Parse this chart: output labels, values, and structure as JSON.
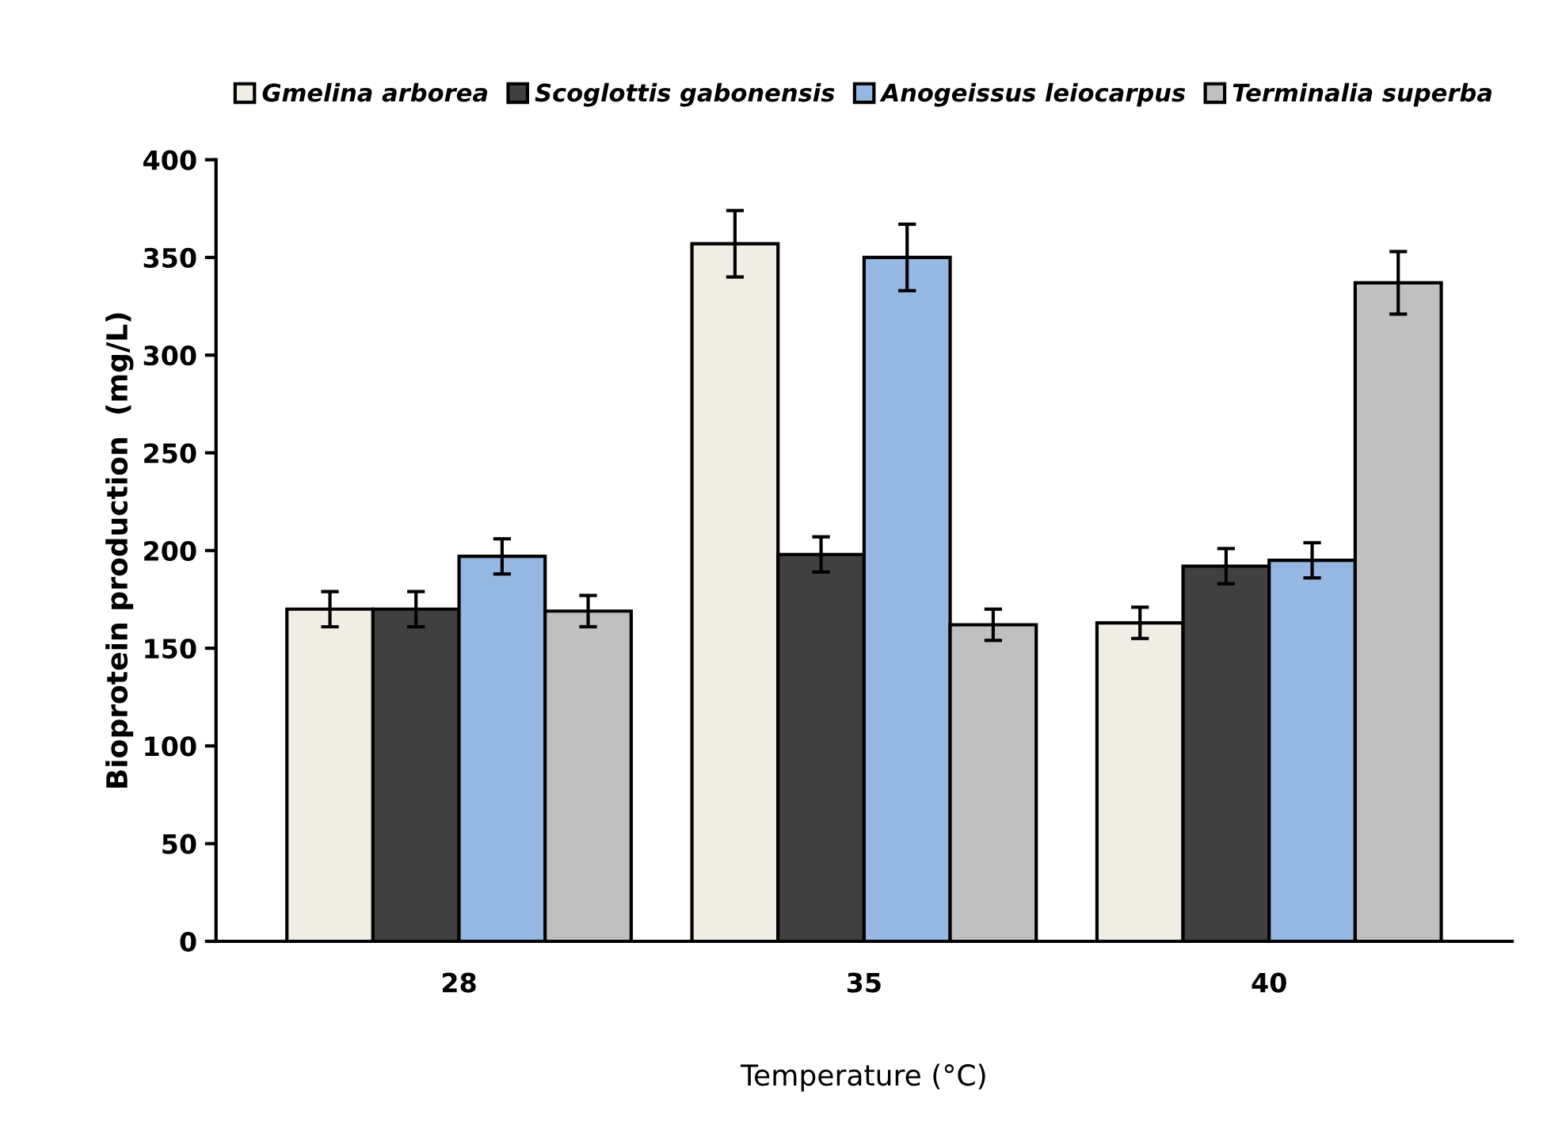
{
  "chart_data": {
    "type": "bar",
    "xlabel": "Temperature (°C)",
    "ylabel": "Bioprotein production  (mg/L)",
    "categories": [
      "28",
      "35",
      "40"
    ],
    "series": [
      {
        "name": "Gmelina arborea",
        "color": "#efede4",
        "values": [
          170,
          357,
          163
        ],
        "errors": [
          9,
          17,
          8
        ]
      },
      {
        "name": "Scoglottis gabonensis",
        "color": "#404040",
        "values": [
          170,
          198,
          192
        ],
        "errors": [
          9,
          9,
          9
        ]
      },
      {
        "name": "Anogeissus leiocarpus",
        "color": "#95b8e3",
        "values": [
          197,
          350,
          195
        ],
        "errors": [
          9,
          17,
          9
        ]
      },
      {
        "name": "Terminalia superba",
        "color": "#c0c0c0",
        "values": [
          169,
          162,
          337
        ],
        "errors": [
          8,
          8,
          16
        ]
      }
    ],
    "ylim": [
      0,
      400
    ],
    "yticks": [
      0,
      50,
      100,
      150,
      200,
      250,
      300,
      350,
      400
    ],
    "grid": false,
    "legend": "top"
  }
}
